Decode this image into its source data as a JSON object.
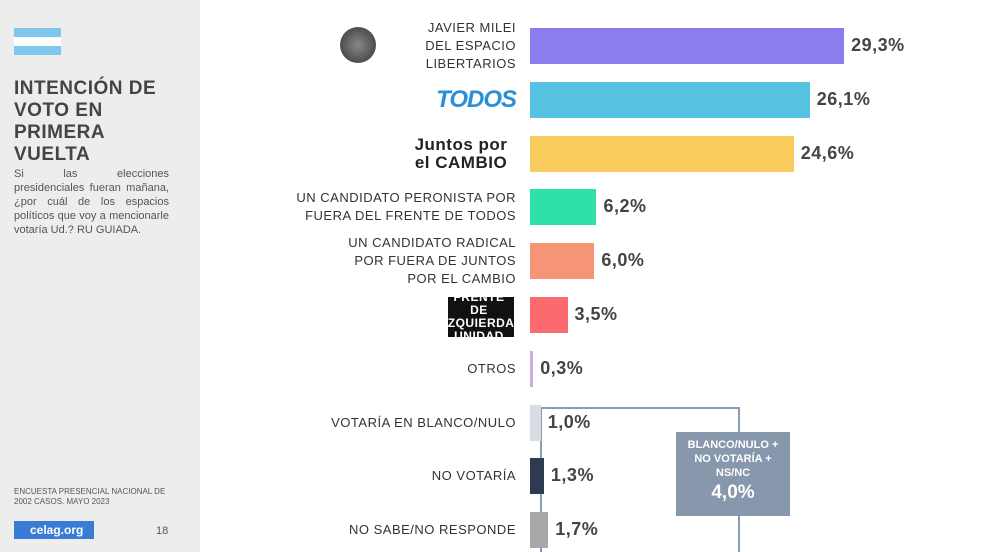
{
  "sidebar": {
    "title": "INTENCIÓN DE VOTO EN PRIMERA VUELTA",
    "question": "Si las elecciones presidenciales fueran mañana, ¿por cuál de los espacios políticos que voy a mencionarle votaría Ud.? RU GUIADA.",
    "source": "ENCUESTA PRESENCIAL NACIONAL DE 2002 CASOS. MAYO 2023",
    "logo": "celag.org",
    "page": "18"
  },
  "chart_data": {
    "type": "bar",
    "categories": [
      "JAVIER MILEI DEL ESPACIO LIBERTARIOS",
      "TODOS",
      "Juntos por el CAMBIO",
      "UN CANDIDATO PERONISTA POR FUERA DEL FRENTE DE TODOS",
      "UN CANDIDATO RADICAL POR FUERA DE JUNTOS POR EL CAMBIO",
      "FRENTE DE IZQUIERDA UNIDAD",
      "OTROS",
      "VOTARÍA EN BLANCO/NULO",
      "NO VOTARÍA",
      "NO SABE/NO RESPONDE"
    ],
    "values": [
      29.3,
      26.1,
      24.6,
      6.2,
      6.0,
      3.5,
      0.3,
      1.0,
      1.3,
      1.7
    ],
    "value_labels": [
      "29,3%",
      "26,1%",
      "24,6%",
      "6,2%",
      "6,0%",
      "3,5%",
      "0,3%",
      "1,0%",
      "1,3%",
      "1,7%"
    ],
    "colors": [
      "#8b7cf0",
      "#57c3e3",
      "#f9cb5c",
      "#2ee0a9",
      "#f69575",
      "#fb6a6e",
      "#d3a6e6",
      "#d9dde3",
      "#2e3a4f",
      "#a8a8a8"
    ],
    "annotation": {
      "text": "BLANCO/NULO + NO VOTARÍA + NS/NC",
      "value": 4.0,
      "value_label": "4,0%"
    }
  }
}
